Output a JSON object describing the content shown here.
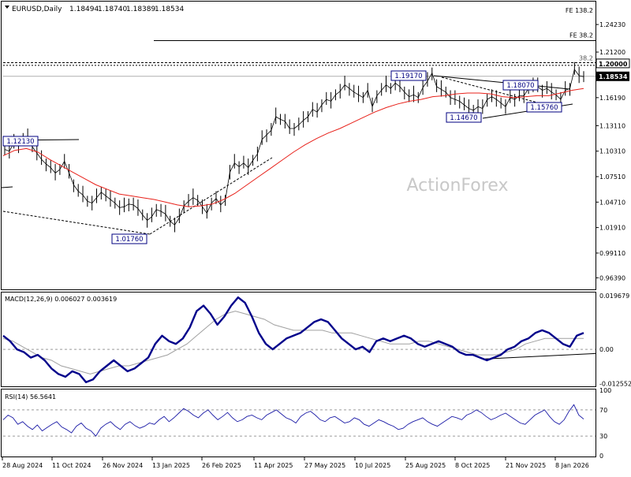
{
  "header": {
    "symbol_label": "EURUSD,Daily",
    "ohlc": [
      "1.18494",
      "1.18740",
      "1.18389",
      "1.18534"
    ]
  },
  "watermark": "ActionForex",
  "colors": {
    "price_line": "#000000",
    "sma": "#e8211a",
    "macd_main": "#00008b",
    "macd_signal": "#a0a0a0",
    "grid_dash": "#9a9a9a",
    "label_border": "#000080",
    "price_tag_bg": "#000000",
    "price_tag_fg": "#ffffff"
  },
  "chart_data": [
    {
      "type": "line",
      "panel": "price",
      "title": "EURUSD,Daily",
      "ylim": [
        0.9512,
        1.2675
      ],
      "y_ticks": [
        "1.24230",
        "1.21200",
        "1.18534",
        "1.16190",
        "1.13110",
        "1.10310",
        "1.07510",
        "1.04710",
        "1.01910",
        "0.99110",
        "0.96390"
      ],
      "x_ticks": [
        "28 Aug 2024",
        "11 Oct 2024",
        "26 Nov 2024",
        "13 Jan 2025",
        "26 Feb 2025",
        "11 Apr 2025",
        "27 May 2025",
        "10 Jul 2025",
        "25 Aug 2025",
        "8 Oct 2025",
        "21 Nov 2025",
        "8 Jan 2026"
      ],
      "current_price": {
        "label": "1.18534",
        "value": 1.18534
      },
      "fibo_levels": [
        {
          "label": "FE 138.2",
          "value": 1.2675
        },
        {
          "label": "FE 38.2",
          "value": 1.2246
        },
        {
          "label": "38.2",
          "value": 1.2003
        },
        {
          "label": "1.20000",
          "value": 1.2
        }
      ],
      "pivot_labels": [
        {
          "label": "1.12130",
          "value": 1.1213
        },
        {
          "label": "1.01760",
          "value": 1.0176
        },
        {
          "label": "1.19170",
          "value": 1.1917
        },
        {
          "label": "1.14670",
          "value": 1.1467
        },
        {
          "label": "1.18070",
          "value": 1.1807
        },
        {
          "label": "1.15760",
          "value": 1.1576
        }
      ],
      "series": [
        {
          "name": "EURUSD",
          "values": [
            1.105,
            1.103,
            1.112,
            1.109,
            1.115,
            1.118,
            1.108,
            1.101,
            1.094,
            1.089,
            1.085,
            1.079,
            1.083,
            1.092,
            1.079,
            1.066,
            1.059,
            1.055,
            1.048,
            1.046,
            1.052,
            1.058,
            1.054,
            1.05,
            1.046,
            1.041,
            1.042,
            1.045,
            1.044,
            1.04,
            1.033,
            1.027,
            1.031,
            1.039,
            1.037,
            1.034,
            1.026,
            1.022,
            1.03,
            1.043,
            1.048,
            1.052,
            1.049,
            1.042,
            1.035,
            1.046,
            1.051,
            1.044,
            1.049,
            1.08,
            1.09,
            1.086,
            1.09,
            1.085,
            1.093,
            1.1,
            1.116,
            1.121,
            1.126,
            1.141,
            1.138,
            1.136,
            1.128,
            1.128,
            1.132,
            1.137,
            1.141,
            1.149,
            1.146,
            1.154,
            1.16,
            1.158,
            1.165,
            1.169,
            1.176,
            1.172,
            1.168,
            1.165,
            1.162,
            1.17,
            1.152,
            1.164,
            1.17,
            1.176,
            1.172,
            1.178,
            1.174,
            1.168,
            1.163,
            1.165,
            1.162,
            1.173,
            1.18,
            1.189,
            1.174,
            1.171,
            1.168,
            1.162,
            1.16,
            1.158,
            1.154,
            1.15,
            1.148,
            1.152,
            1.15,
            1.16,
            1.163,
            1.16,
            1.156,
            1.152,
            1.162,
            1.16,
            1.164,
            1.164,
            1.172,
            1.176,
            1.174,
            1.17,
            1.172,
            1.168,
            1.165,
            1.16,
            1.17,
            1.172,
            1.193,
            1.186,
            1.185
          ]
        },
        {
          "name": "SMA",
          "values": [
            1.098,
            1.104,
            1.106,
            1.102,
            1.094,
            1.087,
            1.08,
            1.073,
            1.066,
            1.061,
            1.056,
            1.054,
            1.052,
            1.05,
            1.047,
            1.044,
            1.042,
            1.043,
            1.045,
            1.05,
            1.057,
            1.066,
            1.075,
            1.084,
            1.093,
            1.102,
            1.11,
            1.117,
            1.123,
            1.128,
            1.134,
            1.14,
            1.146,
            1.151,
            1.155,
            1.158,
            1.16,
            1.163,
            1.164,
            1.166,
            1.167,
            1.167,
            1.166,
            1.163,
            1.162,
            1.163,
            1.164,
            1.164,
            1.167,
            1.17,
            1.172
          ]
        }
      ]
    },
    {
      "type": "line",
      "panel": "macd",
      "title": "MACD(12,26,9) 0.006027 0.003619",
      "ylim": [
        -0.0135,
        0.0205
      ],
      "y_ticks": [
        "0.019679",
        "0.00",
        "-0.012552"
      ],
      "series": [
        {
          "name": "MACD",
          "values": [
            0.005,
            0.003,
            0.0,
            -0.001,
            -0.003,
            -0.002,
            -0.004,
            -0.007,
            -0.009,
            -0.01,
            -0.008,
            -0.009,
            -0.012,
            -0.011,
            -0.008,
            -0.006,
            -0.004,
            -0.006,
            -0.008,
            -0.007,
            -0.005,
            -0.003,
            0.002,
            0.005,
            0.003,
            0.002,
            0.004,
            0.008,
            0.014,
            0.016,
            0.013,
            0.009,
            0.012,
            0.016,
            0.019,
            0.017,
            0.012,
            0.006,
            0.002,
            0.0,
            0.002,
            0.004,
            0.005,
            0.006,
            0.008,
            0.01,
            0.011,
            0.01,
            0.007,
            0.004,
            0.002,
            0.0,
            0.001,
            -0.001,
            0.003,
            0.004,
            0.003,
            0.004,
            0.005,
            0.004,
            0.002,
            0.001,
            0.002,
            0.003,
            0.002,
            0.001,
            -0.001,
            -0.002,
            -0.002,
            -0.003,
            -0.004,
            -0.003,
            -0.002,
            0.0,
            0.001,
            0.003,
            0.004,
            0.006,
            0.007,
            0.006,
            0.004,
            0.002,
            0.001,
            0.005,
            0.006
          ]
        },
        {
          "name": "Signal",
          "values": [
            0.004,
            0.003,
            0.001,
            -0.001,
            -0.003,
            -0.004,
            -0.006,
            -0.007,
            -0.008,
            -0.009,
            -0.008,
            -0.007,
            -0.006,
            -0.006,
            -0.005,
            -0.004,
            -0.003,
            -0.002,
            0.0,
            0.002,
            0.005,
            0.008,
            0.011,
            0.013,
            0.014,
            0.013,
            0.012,
            0.011,
            0.009,
            0.008,
            0.007,
            0.007,
            0.007,
            0.007,
            0.006,
            0.006,
            0.006,
            0.005,
            0.004,
            0.003,
            0.002,
            0.002,
            0.002,
            0.003,
            0.003,
            0.002,
            0.001,
            0.0,
            -0.001,
            -0.002,
            -0.002,
            -0.002,
            -0.001,
            0.0,
            0.002,
            0.003,
            0.004,
            0.004,
            0.004,
            0.004,
            0.004
          ]
        }
      ]
    },
    {
      "type": "line",
      "panel": "rsi",
      "title": "RSI(14) 56.5641",
      "ylim": [
        0,
        100
      ],
      "y_ticks": [
        "100",
        "70",
        "30",
        "0"
      ],
      "series": [
        {
          "name": "RSI",
          "values": [
            55,
            62,
            58,
            48,
            52,
            45,
            40,
            47,
            38,
            43,
            48,
            52,
            44,
            40,
            35,
            45,
            50,
            42,
            38,
            30,
            42,
            48,
            52,
            45,
            40,
            48,
            52,
            46,
            42,
            45,
            50,
            48,
            55,
            60,
            52,
            58,
            65,
            72,
            68,
            62,
            58,
            65,
            70,
            62,
            55,
            60,
            66,
            58,
            52,
            55,
            60,
            62,
            58,
            55,
            62,
            66,
            70,
            64,
            58,
            55,
            50,
            60,
            65,
            68,
            62,
            55,
            52,
            58,
            60,
            55,
            50,
            52,
            58,
            55,
            48,
            45,
            50,
            55,
            52,
            48,
            45,
            40,
            42,
            48,
            52,
            55,
            58,
            52,
            48,
            45,
            50,
            55,
            60,
            58,
            55,
            62,
            65,
            70,
            66,
            60,
            55,
            58,
            62,
            65,
            60,
            55,
            50,
            48,
            55,
            62,
            66,
            70,
            60,
            52,
            48,
            55,
            68,
            78,
            62,
            56
          ]
        }
      ]
    }
  ]
}
